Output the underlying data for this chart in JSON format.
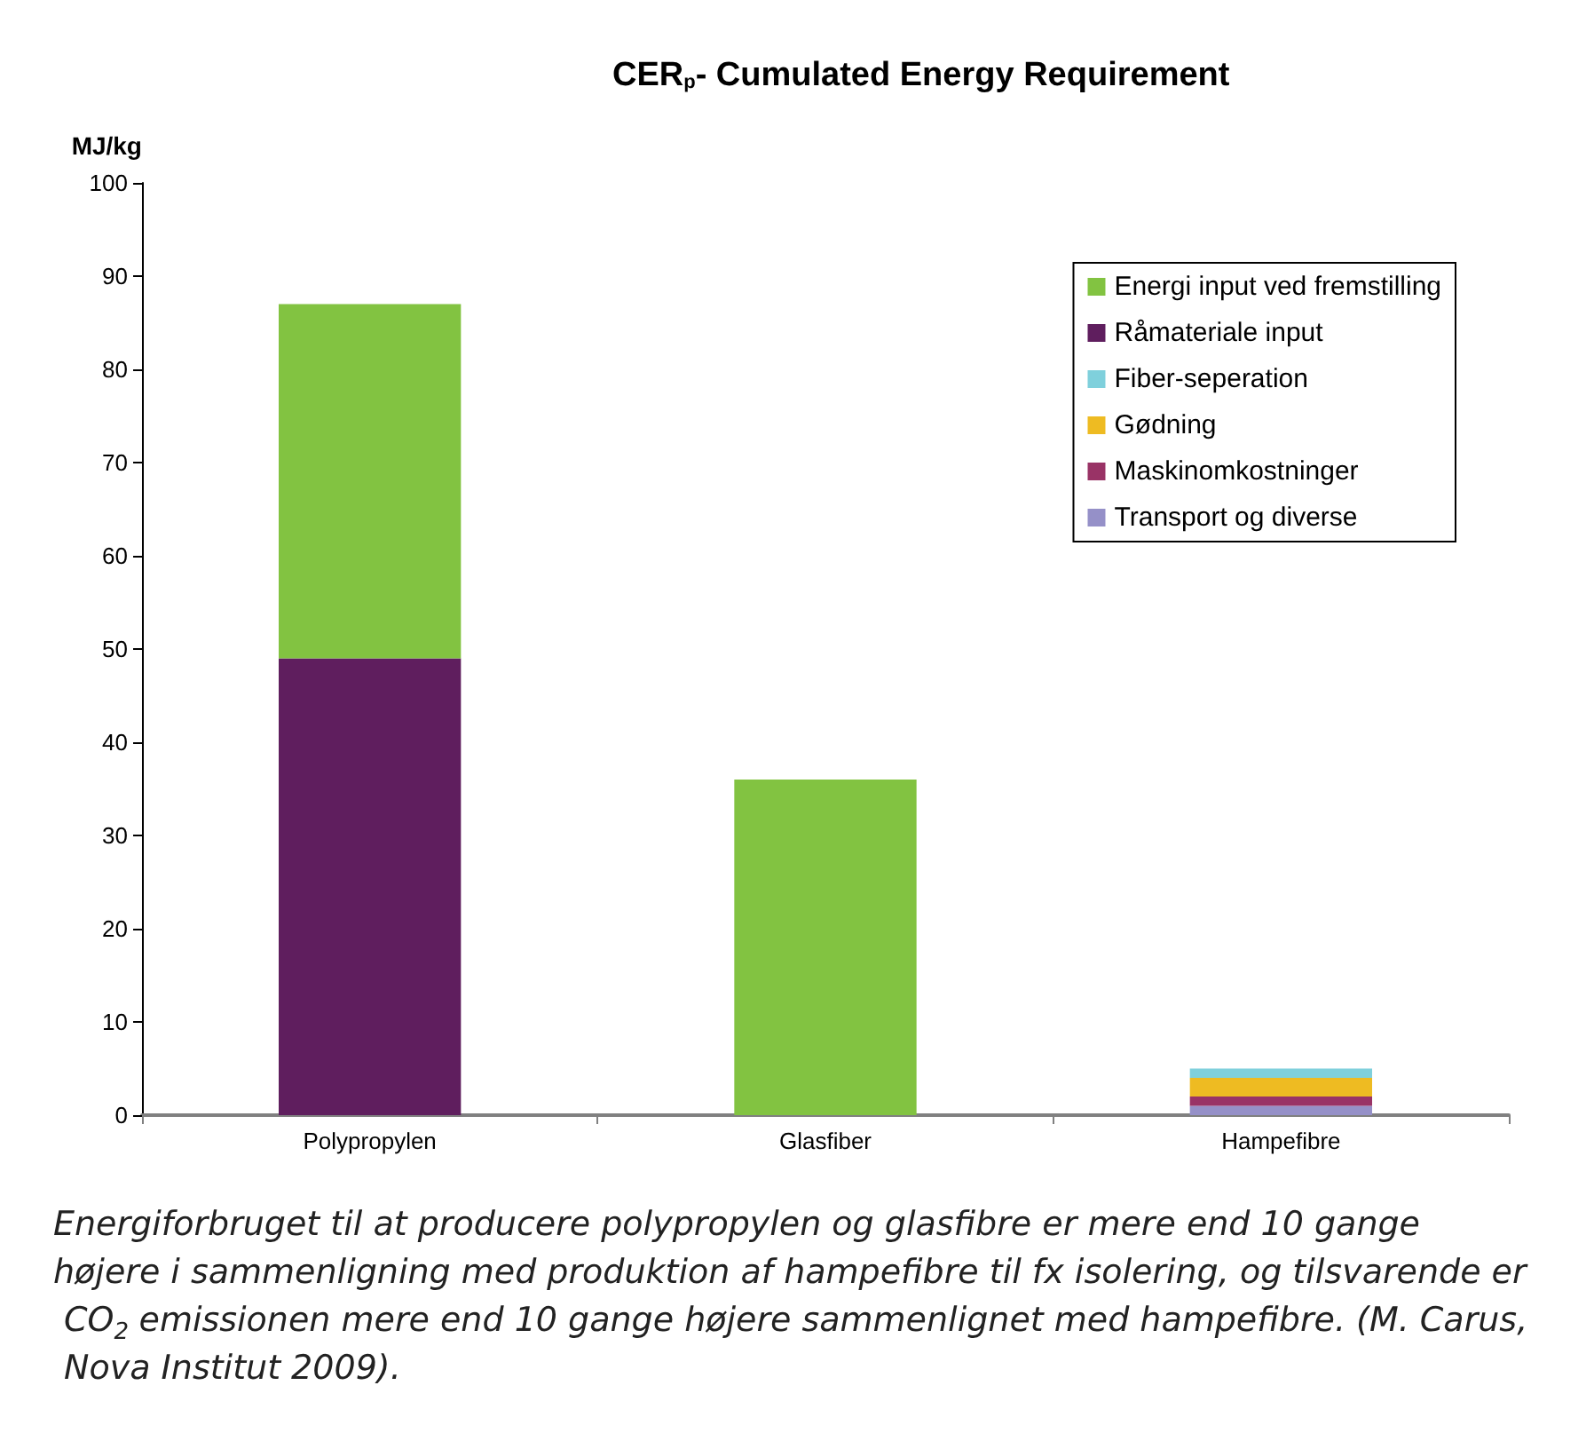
{
  "chart_data": {
    "type": "bar",
    "title": "CER$_{p}$- Cumulated Energy Requirement",
    "ylabel": "MJ/kg",
    "categories": [
      "Polypropylen",
      "Glasfiber",
      "Hampefibre"
    ],
    "stacked": true,
    "series": [
      {
        "name": "Transport og diverse",
        "color": "#9590c8",
        "values": [
          0,
          0,
          1
        ]
      },
      {
        "name": "Maskinomkostninger",
        "color": "#993366",
        "values": [
          0,
          0,
          1
        ]
      },
      {
        "name": "Gødning",
        "color": "#eebb22",
        "values": [
          0,
          0,
          2
        ]
      },
      {
        "name": "Fiber-seperation",
        "color": "#7fd0dc",
        "values": [
          0,
          0,
          1
        ]
      },
      {
        "name": "Råmateriale input",
        "color": "#5f1e5e",
        "values": [
          49,
          0,
          0
        ]
      },
      {
        "name": "Energi input ved fremstilling",
        "color": "#82c341",
        "values": [
          38,
          36,
          0
        ]
      }
    ],
    "ylim": [
      0,
      100
    ],
    "yticks": [
      0,
      10,
      20,
      30,
      40,
      50,
      60,
      70,
      80,
      90,
      100
    ],
    "grid": false,
    "legend": "top right",
    "annotations": [
      "Energiforbruget til at producere polypropylen og glasfibre er mere end 10 gange højere i sammenligning med produktion af hampefibre til fx isolering, og tilsvarende er CO$_{2}$ emissionen mere end 10 gange højere sammenlignet med hampefibre. (M. Carus, Nova Institut 2009)."
    ]
  }
}
